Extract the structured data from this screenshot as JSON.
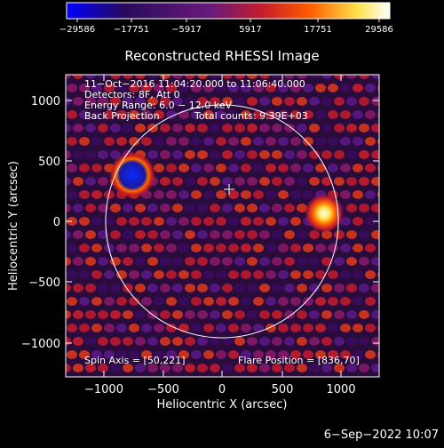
{
  "colorbar": {
    "ticks": [
      "−29586",
      "−17751",
      "−5917",
      "5917",
      "17751",
      "29586"
    ]
  },
  "plot": {
    "title": "Reconstructed RHESSI Image",
    "xlabel": "Heliocentric X (arcsec)",
    "ylabel": "Heliocentric Y (arcsec)",
    "x_ticks": [
      "−1000",
      "−500",
      "0",
      "500",
      "1000"
    ],
    "y_ticks": [
      "1000",
      "500",
      "0",
      "−500",
      "−1000"
    ]
  },
  "info": {
    "line1": "11−Oct−2016 11:04:20.000 to 11:06:40.000",
    "line2": "Detectors: 8F, Att 0",
    "line3": "Energy Range: 6.0 − 12.0 keV",
    "line4_left": "Back Projection",
    "line4_right": "Total counts: 9.39E+03",
    "spin_axis": "Spin Axis = [50,221]",
    "flare_position": "Flare Position = [836,70]"
  },
  "footer": {
    "timestamp": "6−Sep−2022 10:07"
  },
  "colors": {
    "background": "#000000",
    "colormap": [
      "#0000ff",
      "#3b0a6e",
      "#8a1a6a",
      "#d62020",
      "#ff8c00",
      "#ffff66",
      "#ffffff"
    ]
  }
}
